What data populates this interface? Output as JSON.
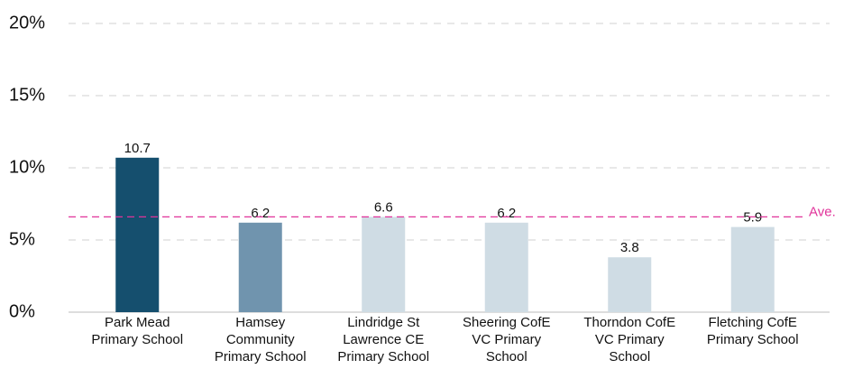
{
  "chart_data": {
    "type": "bar",
    "categories": [
      "Park Mead\nPrimary School",
      "Hamsey\nCommunity\nPrimary School",
      "Lindridge St\nLawrence CE\nPrimary School",
      "Sheering CofE\nVC Primary\nSchool",
      "Thorndon CofE\nVC Primary\nSchool",
      "Fletching CofE\nPrimary School"
    ],
    "values": [
      10.7,
      6.2,
      6.6,
      6.2,
      3.8,
      5.9
    ],
    "colors": [
      "#154f6e",
      "#7094ae",
      "#cfdce4",
      "#cfdce4",
      "#cfdce4",
      "#cfdce4"
    ],
    "ylim": [
      0,
      20
    ],
    "yticks": [
      {
        "value": 0,
        "label": "0%"
      },
      {
        "value": 5,
        "label": "5%"
      },
      {
        "value": 10,
        "label": "10%"
      },
      {
        "value": 15,
        "label": "15%"
      },
      {
        "value": 20,
        "label": "20%"
      }
    ],
    "grid": true,
    "average": {
      "label": "Ave.",
      "value": 6.6,
      "color": "#e0339a"
    }
  }
}
